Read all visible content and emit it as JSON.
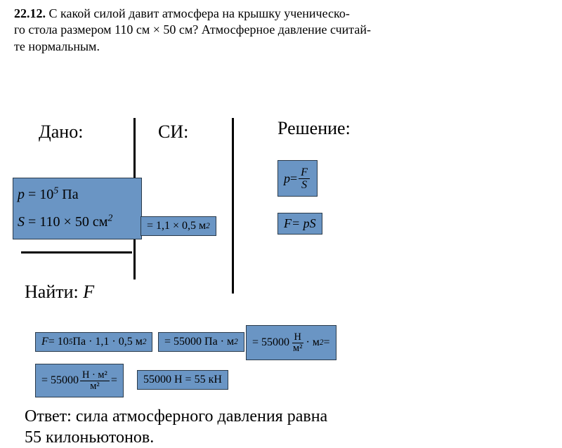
{
  "problem": {
    "number": "22.12.",
    "text_line1": "С какой силой давит атмосфера на крышку ученическо-",
    "text_line2": "го стола размером 110 см × 50 см? Атмосферное давление считай-",
    "text_line3": "те нормальным."
  },
  "headers": {
    "given": "Дано:",
    "si": "СИ:",
    "solution": "Решение:"
  },
  "given": {
    "p_symbol": "p",
    "p_eq": " = 10",
    "p_exp": "5",
    "p_unit": " Па",
    "S_symbol": "S",
    "S_eq": " = 110 × 50 см",
    "S_exp": "2"
  },
  "si": {
    "text_pre": "= 1,1 × 0,5 м",
    "exp": "2"
  },
  "formulas": {
    "p_letter": "p",
    "p_middle": " = ",
    "F": "F",
    "S": "S",
    "F_letter": "F",
    "F_eq": " = pS"
  },
  "find": {
    "label": "Найти: ",
    "symbol": "F"
  },
  "calc": {
    "c1_a": "F",
    "c1_b": " = 10",
    "c1_exp": "5",
    "c1_c": " Па · 1,1 · 0,5 м",
    "c1_exp2": "2",
    "c2_a": "= 55000 Па · м",
    "c2_exp": "2",
    "c3_a": "= 55000 ",
    "c3_num": "Н",
    "c3_den": "м²",
    "c3_b": " · м",
    "c3_exp": "2",
    "c3_c": " =",
    "c4_a": "= 55000 ",
    "c4_num": "Н · м²",
    "c4_den": "м²",
    "c4_b": " =",
    "c5": "55000 Н = 55 кН"
  },
  "answer": {
    "line1": "Ответ: сила  атмосферного давления равна",
    "line2": " 55 килоньютонов."
  },
  "colors": {
    "highlight_bg": "#6a95c4",
    "highlight_border": "#2a3a4a",
    "text": "#000000",
    "background": "#ffffff"
  }
}
